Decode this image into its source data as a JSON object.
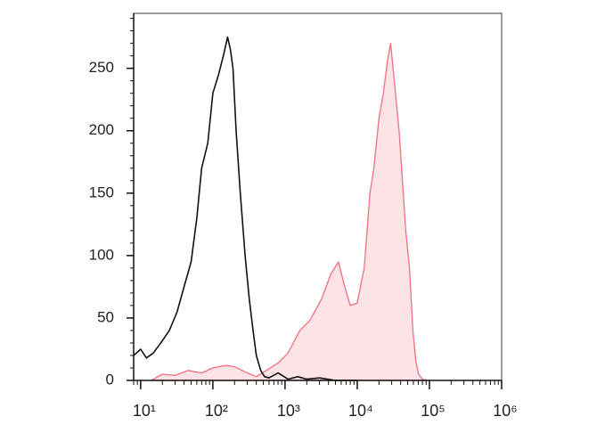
{
  "chart_data": {
    "type": "histogram-overlay",
    "xscale": "log",
    "xlim": [
      8,
      1000000
    ],
    "ylim": [
      0,
      294
    ],
    "xticks": [
      {
        "value": 10,
        "label": "10¹"
      },
      {
        "value": 100,
        "label": "10²"
      },
      {
        "value": 1000,
        "label": "10³"
      },
      {
        "value": 10000,
        "label": "10⁴"
      },
      {
        "value": 100000,
        "label": "10⁵"
      },
      {
        "value": 1000000,
        "label": "10⁶"
      }
    ],
    "yticks": [
      0,
      50,
      100,
      150,
      200,
      250
    ],
    "series": [
      {
        "color": "#f07080",
        "fill": "#fde3e5",
        "filled": true,
        "x": [
          14,
          20,
          30,
          45,
          70,
          100,
          150,
          200,
          300,
          400,
          550,
          800,
          1100,
          1600,
          2200,
          3200,
          4300,
          5500,
          6500,
          8000,
          10000,
          12500,
          15000,
          17000,
          20000,
          23000,
          26000,
          29000,
          32000,
          38000,
          47000,
          53000,
          59000,
          65000,
          71000,
          80000,
          95000
        ],
        "values": [
          0,
          5,
          4,
          8,
          6,
          10,
          12,
          11,
          6,
          3,
          8,
          14,
          22,
          40,
          48,
          65,
          85,
          95,
          78,
          60,
          62,
          90,
          150,
          170,
          210,
          230,
          255,
          270,
          245,
          200,
          120,
          90,
          40,
          15,
          5,
          1,
          0
        ]
      },
      {
        "color": "#111111",
        "filled": false,
        "x": [
          8,
          10,
          12,
          15,
          19,
          25,
          32,
          40,
          50,
          60,
          70,
          85,
          100,
          120,
          140,
          160,
          175,
          190,
          210,
          240,
          280,
          320,
          360,
          400,
          460,
          520,
          600,
          800,
          1100,
          1500,
          2000,
          3000,
          5000,
          10000
        ],
        "values": [
          20,
          25,
          18,
          22,
          30,
          40,
          55,
          75,
          95,
          130,
          170,
          190,
          230,
          245,
          260,
          275,
          265,
          250,
          200,
          150,
          100,
          65,
          40,
          20,
          8,
          3,
          2,
          6,
          1,
          3,
          1,
          2,
          0,
          0
        ]
      }
    ]
  }
}
